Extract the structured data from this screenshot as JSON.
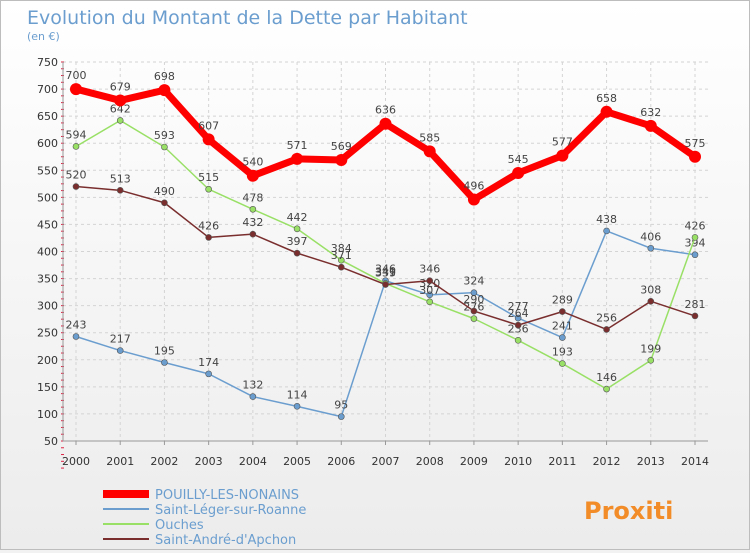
{
  "title": "Evolution du Montant de la Dette par Habitant",
  "subtitle": "(en €)",
  "brand": "Proxiti",
  "chart_data": {
    "type": "line",
    "title": "Evolution du Montant de la Dette par Habitant",
    "ylabel": "(en €)",
    "xlabel": "",
    "ylim": [
      50,
      750
    ],
    "yticks": [
      50,
      100,
      150,
      200,
      250,
      300,
      350,
      400,
      450,
      500,
      550,
      600,
      650,
      700,
      750
    ],
    "grid": true,
    "legend_position": "bottom-left",
    "x": [
      2000,
      2001,
      2002,
      2003,
      2004,
      2005,
      2006,
      2007,
      2008,
      2009,
      2010,
      2011,
      2012,
      2013,
      2014
    ],
    "series": [
      {
        "name": "POUILLY-LES-NONAINS",
        "color": "#ff0000",
        "values": [
          700,
          679,
          698,
          607,
          540,
          571,
          569,
          636,
          585,
          496,
          545,
          577,
          658,
          632,
          575
        ]
      },
      {
        "name": "Saint-Léger-sur-Roanne",
        "color": "#6b9ecf",
        "values": [
          243,
          217,
          195,
          174,
          132,
          114,
          95,
          346,
          320,
          324,
          277,
          241,
          438,
          406,
          394
        ]
      },
      {
        "name": "Ouches",
        "color": "#99e066",
        "values": [
          594,
          642,
          593,
          515,
          478,
          442,
          384,
          341,
          307,
          276,
          236,
          193,
          146,
          199,
          426
        ]
      },
      {
        "name": "Saint-André-d'Apchon",
        "color": "#7a2e2e",
        "values": [
          520,
          513,
          490,
          426,
          432,
          397,
          371,
          339,
          346,
          290,
          264,
          289,
          256,
          308,
          281
        ]
      }
    ]
  }
}
